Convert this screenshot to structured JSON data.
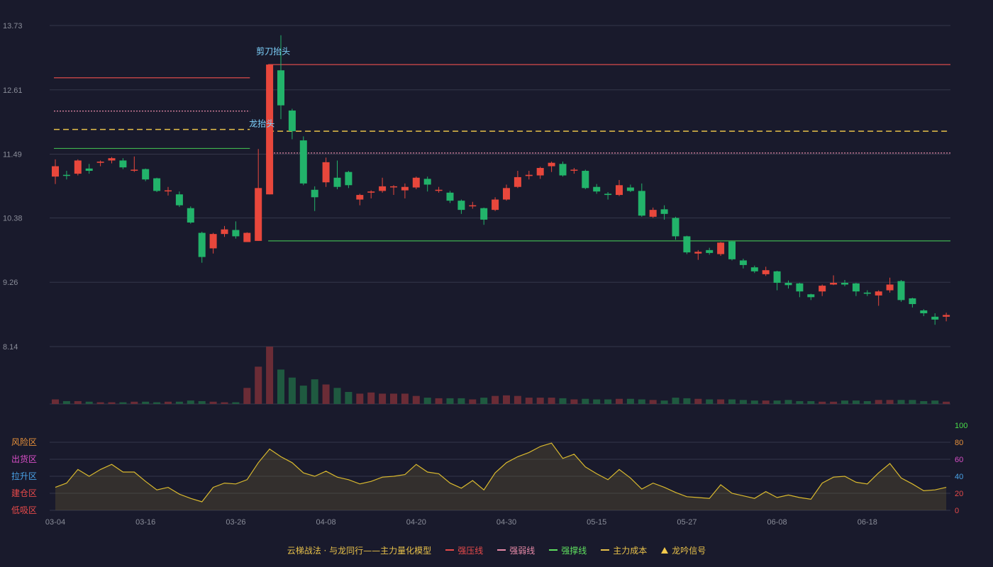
{
  "chart_data": {
    "type": "candlestick",
    "price_axis": {
      "ticks": [
        "13.73",
        "12.61",
        "11.49",
        "10.38",
        "9.26",
        "8.14"
      ],
      "min": 8.14,
      "max": 13.73
    },
    "x_labels": [
      {
        "index": 0,
        "text": "03-04"
      },
      {
        "index": 8,
        "text": "03-16"
      },
      {
        "index": 16,
        "text": "03-26"
      },
      {
        "index": 24,
        "text": "04-08"
      },
      {
        "index": 32,
        "text": "04-20"
      },
      {
        "index": 40,
        "text": "04-30"
      },
      {
        "index": 48,
        "text": "05-15"
      },
      {
        "index": 56,
        "text": "05-27"
      },
      {
        "index": 64,
        "text": "06-08"
      },
      {
        "index": 72,
        "text": "06-18"
      }
    ],
    "candles": [
      [
        11.1,
        11.28,
        11.4,
        10.97
      ],
      [
        11.13,
        11.12,
        11.2,
        11.05
      ],
      [
        11.15,
        11.38,
        11.4,
        11.12
      ],
      [
        11.24,
        11.2,
        11.32,
        11.15
      ],
      [
        11.34,
        11.36,
        11.38,
        11.28
      ],
      [
        11.38,
        11.42,
        11.44,
        11.33
      ],
      [
        11.38,
        11.26,
        11.42,
        11.23
      ],
      [
        11.22,
        11.22,
        11.45,
        11.18
      ],
      [
        11.23,
        11.05,
        11.24,
        11.02
      ],
      [
        11.07,
        10.85,
        11.08,
        10.83
      ],
      [
        10.85,
        10.86,
        10.92,
        10.77
      ],
      [
        10.79,
        10.6,
        10.84,
        10.57
      ],
      [
        10.55,
        10.3,
        10.58,
        10.28
      ],
      [
        10.12,
        9.7,
        10.14,
        9.6
      ],
      [
        9.85,
        10.1,
        10.12,
        9.76
      ],
      [
        10.1,
        10.18,
        10.24,
        10.05
      ],
      [
        10.17,
        10.06,
        10.32,
        10.02
      ],
      [
        9.96,
        10.12,
        10.13,
        9.96
      ],
      [
        9.98,
        10.9,
        11.58,
        9.98
      ],
      [
        10.79,
        13.05,
        13.05,
        10.79
      ],
      [
        12.95,
        12.34,
        13.56,
        12.1
      ],
      [
        12.25,
        11.89,
        12.28,
        11.75
      ],
      [
        11.73,
        10.98,
        11.8,
        10.95
      ],
      [
        10.87,
        10.74,
        10.93,
        10.5
      ],
      [
        11.0,
        11.35,
        11.43,
        10.92
      ],
      [
        11.08,
        10.92,
        11.38,
        10.88
      ],
      [
        11.18,
        10.95,
        11.2,
        10.9
      ],
      [
        10.7,
        10.78,
        10.8,
        10.6
      ],
      [
        10.82,
        10.84,
        10.86,
        10.72
      ],
      [
        10.85,
        10.93,
        11.08,
        10.82
      ],
      [
        10.92,
        10.93,
        10.95,
        10.78
      ],
      [
        10.86,
        10.92,
        10.98,
        10.72
      ],
      [
        10.91,
        11.08,
        11.1,
        10.88
      ],
      [
        11.06,
        10.96,
        11.1,
        10.84
      ],
      [
        10.86,
        10.87,
        10.92,
        10.82
      ],
      [
        10.82,
        10.68,
        10.85,
        10.64
      ],
      [
        10.68,
        10.52,
        10.7,
        10.45
      ],
      [
        10.6,
        10.6,
        10.66,
        10.54
      ],
      [
        10.55,
        10.35,
        10.56,
        10.26
      ],
      [
        10.52,
        10.7,
        10.74,
        10.5
      ],
      [
        10.7,
        10.9,
        10.96,
        10.68
      ],
      [
        10.92,
        11.09,
        11.2,
        10.9
      ],
      [
        11.11,
        11.13,
        11.2,
        11.05
      ],
      [
        11.12,
        11.25,
        11.27,
        11.06
      ],
      [
        11.28,
        11.34,
        11.36,
        11.18
      ],
      [
        11.32,
        11.12,
        11.36,
        11.1
      ],
      [
        11.22,
        11.22,
        11.25,
        11.15
      ],
      [
        11.2,
        10.9,
        11.22,
        10.88
      ],
      [
        10.92,
        10.84,
        10.97,
        10.8
      ],
      [
        10.8,
        10.78,
        10.83,
        10.7
      ],
      [
        10.78,
        10.95,
        11.04,
        10.76
      ],
      [
        10.91,
        10.85,
        10.96,
        10.83
      ],
      [
        10.85,
        10.42,
        10.98,
        10.4
      ],
      [
        10.4,
        10.52,
        10.56,
        10.38
      ],
      [
        10.53,
        10.45,
        10.6,
        10.35
      ],
      [
        10.38,
        10.06,
        10.4,
        10.0
      ],
      [
        10.06,
        9.78,
        10.07,
        9.75
      ],
      [
        9.76,
        9.79,
        9.82,
        9.65
      ],
      [
        9.82,
        9.77,
        9.86,
        9.74
      ],
      [
        9.75,
        9.95,
        9.96,
        9.72
      ],
      [
        9.97,
        9.66,
        9.98,
        9.64
      ],
      [
        9.64,
        9.56,
        9.67,
        9.5
      ],
      [
        9.52,
        9.45,
        9.55,
        9.42
      ],
      [
        9.4,
        9.47,
        9.53,
        9.37
      ],
      [
        9.45,
        9.25,
        9.46,
        9.12
      ],
      [
        9.25,
        9.21,
        9.29,
        9.15
      ],
      [
        9.24,
        9.1,
        9.25,
        9.0
      ],
      [
        9.05,
        9.0,
        9.06,
        8.95
      ],
      [
        9.1,
        9.2,
        9.22,
        9.02
      ],
      [
        9.22,
        9.25,
        9.38,
        9.21
      ],
      [
        9.25,
        9.22,
        9.3,
        9.19
      ],
      [
        9.24,
        9.1,
        9.25,
        9.02
      ],
      [
        9.08,
        9.06,
        9.12,
        9.02
      ],
      [
        9.03,
        9.1,
        9.12,
        8.85
      ],
      [
        9.12,
        9.22,
        9.34,
        9.08
      ],
      [
        9.28,
        8.95,
        9.3,
        8.92
      ],
      [
        8.98,
        8.88,
        8.99,
        8.82
      ],
      [
        8.77,
        8.72,
        8.79,
        8.67
      ],
      [
        8.66,
        8.61,
        8.72,
        8.52
      ],
      [
        8.66,
        8.69,
        8.73,
        8.58
      ]
    ],
    "volume": [
      8,
      5,
      5,
      4,
      3,
      3,
      3,
      4,
      4,
      3,
      4,
      4,
      6,
      5,
      4,
      3,
      3,
      28,
      65,
      100,
      60,
      46,
      32,
      43,
      34,
      28,
      21,
      18,
      20,
      18,
      18,
      18,
      14,
      11,
      10,
      10,
      10,
      8,
      11,
      14,
      15,
      14,
      11,
      11,
      11,
      10,
      8,
      9,
      8,
      8,
      9,
      9,
      8,
      7,
      6,
      11,
      10,
      9,
      8,
      8,
      8,
      7,
      6,
      6,
      6,
      7,
      5,
      5,
      4,
      4,
      6,
      6,
      5,
      7,
      7,
      7,
      7,
      5,
      6,
      4
    ],
    "upper_lines": [
      {
        "type": "strong_pressure",
        "value": 12.82,
        "start": 0,
        "end": 17,
        "color": "#d84a4a",
        "dash": ""
      },
      {
        "type": "weak",
        "value": 12.24,
        "start": 0,
        "end": 17,
        "color": "#e88aa8",
        "dash": "2,2"
      },
      {
        "type": "cost",
        "value": 11.92,
        "start": 0,
        "end": 17,
        "color": "#e8c14a",
        "dash": "8,5"
      },
      {
        "type": "support",
        "value": 11.59,
        "start": 0,
        "end": 17,
        "color": "#3fb34f",
        "dash": ""
      },
      {
        "type": "strong_pressure",
        "value": 13.05,
        "start": 19,
        "end": 79,
        "color": "#d84a4a",
        "dash": ""
      },
      {
        "type": "cost",
        "value": 11.89,
        "start": 19,
        "end": 79,
        "color": "#e8c14a",
        "dash": "8,5"
      },
      {
        "type": "weak",
        "value": 11.51,
        "start": 19,
        "end": 79,
        "color": "#e88aa8",
        "dash": "2,2"
      },
      {
        "type": "support",
        "value": 9.98,
        "start": 19,
        "end": 79,
        "color": "#3fb34f",
        "dash": ""
      }
    ],
    "signals": [
      {
        "index": 19,
        "value": 13.13,
        "label": "剪刀抬头"
      },
      {
        "index": 18,
        "value": 11.87,
        "label": "龙抬头"
      }
    ],
    "oscillator": {
      "ticks": [
        "100",
        "80",
        "60",
        "40",
        "20",
        "0"
      ],
      "zones": [
        "风险区",
        "出货区",
        "拉升区",
        "建仓区",
        "低吸区"
      ],
      "zone_colors": [
        "#e8913a",
        "#d94fc8",
        "#4aa3e8",
        "#e84a4a",
        "#e84a4a"
      ],
      "tick_colors": [
        "#4adf4a",
        "#e8913a",
        "#d94fc8",
        "#4aa3e8",
        "#e84a4a",
        "#e84a4a"
      ],
      "values": [
        27,
        32,
        48,
        40,
        48,
        54,
        45,
        45,
        34,
        24,
        27,
        19,
        14,
        10,
        27,
        32,
        31,
        36,
        56,
        72,
        63,
        56,
        44,
        40,
        46,
        39,
        36,
        31,
        34,
        39,
        40,
        42,
        54,
        45,
        43,
        32,
        26,
        35,
        24,
        44,
        56,
        63,
        68,
        75,
        79,
        61,
        66,
        51,
        43,
        36,
        48,
        38,
        25,
        32,
        27,
        21,
        16,
        15,
        14,
        30,
        20,
        17,
        14,
        22,
        15,
        18,
        15,
        13,
        32,
        39,
        40,
        33,
        31,
        44,
        55,
        38,
        31,
        23,
        24,
        27
      ]
    },
    "legend": {
      "model": "云梯战法 · 与龙同行——主力量化模型",
      "strong_pressure": "强压线",
      "weak": "强弱线",
      "support": "强撑线",
      "cost": "主力成本",
      "signal": "龙吟信号"
    }
  }
}
